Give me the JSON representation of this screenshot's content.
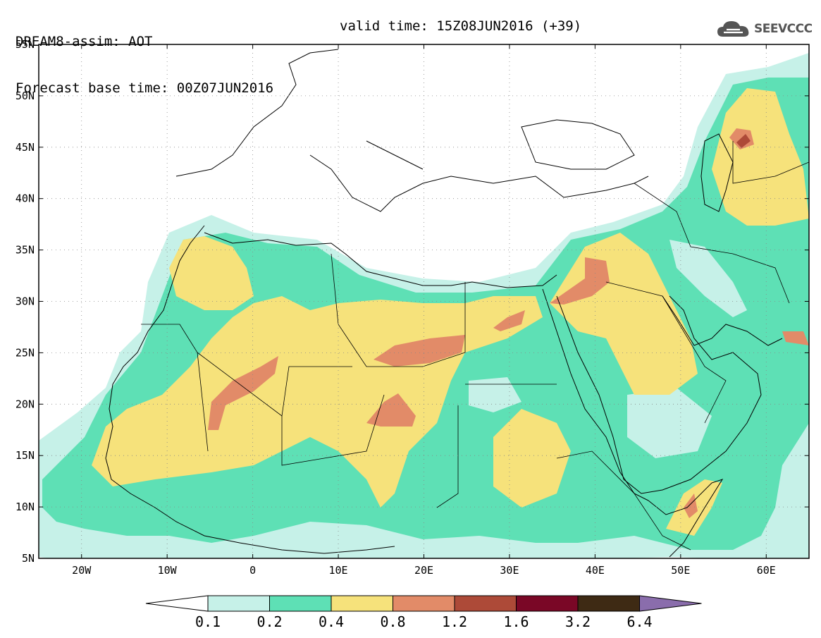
{
  "title": {
    "line1": "DREAM8-assim: AOT",
    "base_time": "Forecast base time: 00Z07JUN2016",
    "valid_time": "valid time: 15Z08JUN2016 (+39)"
  },
  "logo": {
    "text": "SEEVCCC",
    "icon": "cloud-icon"
  },
  "map": {
    "lon_range": [
      -25,
      65
    ],
    "lat_range": [
      5,
      55
    ],
    "x_ticks": [
      {
        "value": -20,
        "label": "20W"
      },
      {
        "value": -10,
        "label": "10W"
      },
      {
        "value": 0,
        "label": "0"
      },
      {
        "value": 10,
        "label": "10E"
      },
      {
        "value": 20,
        "label": "20E"
      },
      {
        "value": 30,
        "label": "30E"
      },
      {
        "value": 40,
        "label": "40E"
      },
      {
        "value": 50,
        "label": "50E"
      },
      {
        "value": 60,
        "label": "60E"
      }
    ],
    "y_ticks": [
      {
        "value": 55,
        "label": "55N"
      },
      {
        "value": 50,
        "label": "50N"
      },
      {
        "value": 45,
        "label": "45N"
      },
      {
        "value": 40,
        "label": "40N"
      },
      {
        "value": 35,
        "label": "35N"
      },
      {
        "value": 30,
        "label": "30N"
      },
      {
        "value": 25,
        "label": "25N"
      },
      {
        "value": 20,
        "label": "20N"
      },
      {
        "value": 15,
        "label": "15N"
      },
      {
        "value": 10,
        "label": "10N"
      },
      {
        "value": 5,
        "label": "5N"
      }
    ],
    "colors": {
      "c1": "#c6f1e8",
      "c2": "#5ee0b5",
      "c3": "#f6e27b",
      "c4": "#e28b68",
      "c5": "#ad4a38",
      "c6": "#7a0726",
      "c7": "#3e2a14",
      "c8": "#8a6dac"
    }
  },
  "colorbar": {
    "labels": [
      "0.1",
      "0.2",
      "0.4",
      "0.8",
      "1.2",
      "1.6",
      "3.2",
      "6.4"
    ],
    "colors": [
      "#c6f1e8",
      "#5ee0b5",
      "#f6e27b",
      "#e28b68",
      "#ad4a38",
      "#7a0726",
      "#3e2a14"
    ],
    "under_color": "#ffffff",
    "over_color": "#8a6dac"
  }
}
